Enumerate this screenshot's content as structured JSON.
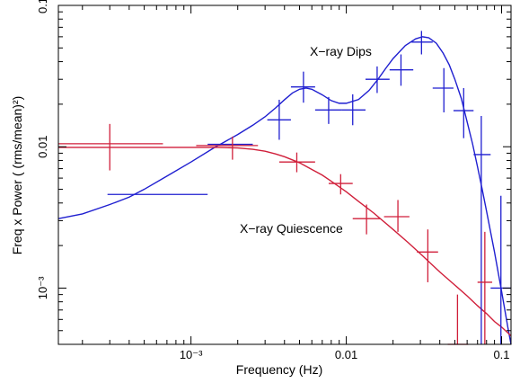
{
  "chart_data": {
    "type": "scatter",
    "xlabel": "Frequency (Hz)",
    "ylabel": "Freq x Power ( (rms/mean)²)",
    "xscale": "log",
    "yscale": "log",
    "xlim": [
      0.00014,
      0.115
    ],
    "ylim": [
      0.0004,
      0.1
    ],
    "grid": false,
    "x_ticks": [
      {
        "value": 0.001,
        "label": "10⁻³"
      },
      {
        "value": 0.01,
        "label": "0.01"
      },
      {
        "value": 0.1,
        "label": "0.1"
      }
    ],
    "y_ticks": [
      {
        "value": 0.001,
        "label": "10⁻³"
      },
      {
        "value": 0.01,
        "label": "0.01"
      },
      {
        "value": 0.1,
        "label": "0.1"
      }
    ],
    "annotations": [
      {
        "text": "X−ray Dips",
        "series": 0
      },
      {
        "text": "X−ray Quiescence",
        "series": 1
      }
    ],
    "series": [
      {
        "name": "",
        "color": "#1f1fd0",
        "points": [
          {
            "x": 0.00066,
            "y": 0.0046,
            "xlo": 0.00029,
            "xhi": 0.00128,
            "ylo": 0.0046,
            "yhi": 0.0046
          },
          {
            "x": 0.00178,
            "y": 0.0104,
            "xlo": 0.00128,
            "xhi": 0.0025,
            "ylo": 0.0104,
            "yhi": 0.0104
          },
          {
            "x": 0.0037,
            "y": 0.0155,
            "xlo": 0.0031,
            "xhi": 0.0044,
            "ylo": 0.0112,
            "yhi": 0.0215
          },
          {
            "x": 0.0053,
            "y": 0.0265,
            "xlo": 0.0044,
            "xhi": 0.0063,
            "ylo": 0.0205,
            "yhi": 0.034
          },
          {
            "x": 0.0077,
            "y": 0.0182,
            "xlo": 0.0063,
            "xhi": 0.0094,
            "ylo": 0.0145,
            "yhi": 0.0225
          },
          {
            "x": 0.011,
            "y": 0.0182,
            "xlo": 0.0094,
            "xhi": 0.0133,
            "ylo": 0.0142,
            "yhi": 0.0235
          },
          {
            "x": 0.0158,
            "y": 0.03,
            "xlo": 0.0133,
            "xhi": 0.019,
            "ylo": 0.024,
            "yhi": 0.037
          },
          {
            "x": 0.0225,
            "y": 0.035,
            "xlo": 0.019,
            "xhi": 0.027,
            "ylo": 0.027,
            "yhi": 0.045
          },
          {
            "x": 0.0305,
            "y": 0.055,
            "xlo": 0.0263,
            "xhi": 0.036,
            "ylo": 0.045,
            "yhi": 0.066
          },
          {
            "x": 0.0425,
            "y": 0.026,
            "xlo": 0.036,
            "xhi": 0.049,
            "ylo": 0.0175,
            "yhi": 0.036
          },
          {
            "x": 0.057,
            "y": 0.018,
            "xlo": 0.049,
            "xhi": 0.066,
            "ylo": 0.0115,
            "yhi": 0.026
          },
          {
            "x": 0.074,
            "y": 0.0088,
            "xlo": 0.066,
            "xhi": 0.085,
            "ylo": 0.0004,
            "yhi": 0.0165
          },
          {
            "x": 0.099,
            "y": 0.001,
            "xlo": 0.085,
            "xhi": 0.115,
            "ylo": 0.0004,
            "yhi": 0.0045
          }
        ]
      },
      {
        "name": "",
        "color": "#d01f3a",
        "points": [
          {
            "x": 0.0003,
            "y": 0.0105,
            "xlo": 0.00014,
            "xhi": 0.00066,
            "ylo": 0.0068,
            "yhi": 0.0145
          },
          {
            "x": 0.00185,
            "y": 0.0102,
            "xlo": 0.00108,
            "xhi": 0.0027,
            "ylo": 0.0081,
            "yhi": 0.0118
          },
          {
            "x": 0.0048,
            "y": 0.0078,
            "xlo": 0.0037,
            "xhi": 0.0063,
            "ylo": 0.0066,
            "yhi": 0.0091
          },
          {
            "x": 0.0092,
            "y": 0.0055,
            "xlo": 0.0077,
            "xhi": 0.011,
            "ylo": 0.0046,
            "yhi": 0.0064
          },
          {
            "x": 0.0135,
            "y": 0.0031,
            "xlo": 0.011,
            "xhi": 0.0165,
            "ylo": 0.0024,
            "yhi": 0.0039
          },
          {
            "x": 0.0215,
            "y": 0.0032,
            "xlo": 0.0175,
            "xhi": 0.0255,
            "ylo": 0.0025,
            "yhi": 0.0042
          },
          {
            "x": 0.0335,
            "y": 0.0018,
            "xlo": 0.0285,
            "xhi": 0.039,
            "ylo": 0.0011,
            "yhi": 0.0026
          },
          {
            "x": 0.052,
            "y": 0.00036,
            "xlo": 0.045,
            "xhi": 0.061,
            "ylo": 0.00033,
            "yhi": 0.0009
          },
          {
            "x": 0.078,
            "y": 0.0011,
            "xlo": 0.07,
            "xhi": 0.087,
            "ylo": 0.0004,
            "yhi": 0.0025
          }
        ]
      }
    ],
    "model_curves": [
      {
        "series": 0,
        "color": "#1f1fd0",
        "points": [
          [
            0.00014,
            0.0031
          ],
          [
            0.0002,
            0.00335
          ],
          [
            0.0003,
            0.0039
          ],
          [
            0.0004,
            0.0044
          ],
          [
            0.0005,
            0.005
          ],
          [
            0.0007,
            0.0062
          ],
          [
            0.001,
            0.0078
          ],
          [
            0.0014,
            0.0098
          ],
          [
            0.002,
            0.0122
          ],
          [
            0.0025,
            0.0142
          ],
          [
            0.003,
            0.0163
          ],
          [
            0.0035,
            0.0188
          ],
          [
            0.004,
            0.0215
          ],
          [
            0.0045,
            0.024
          ],
          [
            0.005,
            0.0255
          ],
          [
            0.0055,
            0.026
          ],
          [
            0.006,
            0.0255
          ],
          [
            0.007,
            0.0233
          ],
          [
            0.008,
            0.0212
          ],
          [
            0.009,
            0.0203
          ],
          [
            0.01,
            0.0203
          ],
          [
            0.012,
            0.0216
          ],
          [
            0.014,
            0.025
          ],
          [
            0.016,
            0.03
          ],
          [
            0.018,
            0.036
          ],
          [
            0.02,
            0.042
          ],
          [
            0.024,
            0.052
          ],
          [
            0.028,
            0.058
          ],
          [
            0.031,
            0.06
          ],
          [
            0.034,
            0.059
          ],
          [
            0.038,
            0.054
          ],
          [
            0.042,
            0.046
          ],
          [
            0.046,
            0.038
          ],
          [
            0.05,
            0.03
          ],
          [
            0.055,
            0.022
          ],
          [
            0.06,
            0.015
          ],
          [
            0.065,
            0.0105
          ],
          [
            0.07,
            0.0072
          ],
          [
            0.075,
            0.005
          ],
          [
            0.08,
            0.0035
          ],
          [
            0.09,
            0.0018
          ],
          [
            0.1,
            0.00095
          ],
          [
            0.11,
            0.00052
          ],
          [
            0.115,
            0.0004
          ]
        ]
      },
      {
        "series": 1,
        "color": "#d01f3a",
        "points": [
          [
            0.00014,
            0.0099
          ],
          [
            0.0005,
            0.0099
          ],
          [
            0.001,
            0.0099
          ],
          [
            0.0015,
            0.0099
          ],
          [
            0.002,
            0.0098
          ],
          [
            0.0025,
            0.0096
          ],
          [
            0.003,
            0.0093
          ],
          [
            0.0035,
            0.0089
          ],
          [
            0.004,
            0.0085
          ],
          [
            0.005,
            0.0077
          ],
          [
            0.006,
            0.0069
          ],
          [
            0.007,
            0.0063
          ],
          [
            0.008,
            0.0057
          ],
          [
            0.01,
            0.0048
          ],
          [
            0.012,
            0.0041
          ],
          [
            0.015,
            0.0034
          ],
          [
            0.02,
            0.0026
          ],
          [
            0.025,
            0.0021
          ],
          [
            0.03,
            0.00175
          ],
          [
            0.04,
            0.0013
          ],
          [
            0.05,
            0.00105
          ],
          [
            0.06,
            0.00088
          ],
          [
            0.07,
            0.00075
          ],
          [
            0.08,
            0.00066
          ],
          [
            0.09,
            0.00058
          ],
          [
            0.1,
            0.00053
          ],
          [
            0.115,
            0.00046
          ]
        ]
      }
    ]
  }
}
